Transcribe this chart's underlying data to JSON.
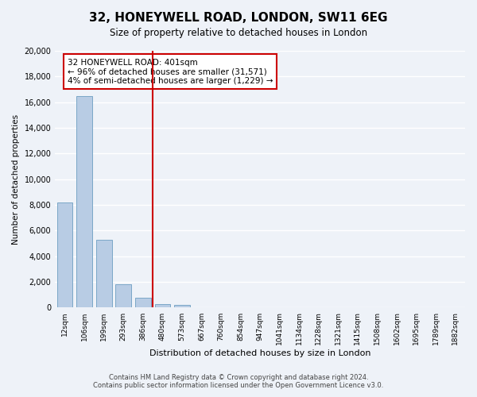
{
  "title": "32, HONEYWELL ROAD, LONDON, SW11 6EG",
  "subtitle": "Size of property relative to detached houses in London",
  "xlabel": "Distribution of detached houses by size in London",
  "ylabel": "Number of detached properties",
  "bar_color": "#b8cce4",
  "bar_edge_color": "#7ba7c7",
  "vline_color": "#cc0000",
  "vline_x": 4.5,
  "categories": [
    "12sqm",
    "106sqm",
    "199sqm",
    "293sqm",
    "386sqm",
    "480sqm",
    "573sqm",
    "667sqm",
    "760sqm",
    "854sqm",
    "947sqm",
    "1041sqm",
    "1134sqm",
    "1228sqm",
    "1321sqm",
    "1415sqm",
    "1508sqm",
    "1602sqm",
    "1695sqm",
    "1789sqm",
    "1882sqm"
  ],
  "values": [
    8200,
    16500,
    5300,
    1800,
    800,
    300,
    220,
    0,
    0,
    0,
    0,
    0,
    0,
    0,
    0,
    0,
    0,
    0,
    0,
    0,
    0
  ],
  "ylim": [
    0,
    20000
  ],
  "yticks": [
    0,
    2000,
    4000,
    6000,
    8000,
    10000,
    12000,
    14000,
    16000,
    18000,
    20000
  ],
  "annotation_title": "32 HONEYWELL ROAD: 401sqm",
  "annotation_line1": "← 96% of detached houses are smaller (31,571)",
  "annotation_line2": "4% of semi-detached houses are larger (1,229) →",
  "annotation_box_color": "#ffffff",
  "annotation_box_edge": "#cc0000",
  "footer1": "Contains HM Land Registry data © Crown copyright and database right 2024.",
  "footer2": "Contains public sector information licensed under the Open Government Licence v3.0.",
  "bg_color": "#eef2f8",
  "plot_bg_color": "#eef2f8"
}
